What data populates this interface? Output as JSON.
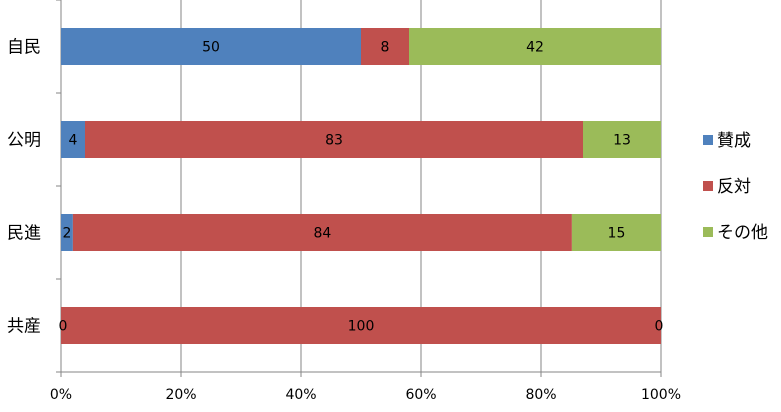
{
  "chart_data": {
    "type": "bar",
    "orientation": "horizontal",
    "stacked": "percent",
    "categories": [
      "自民",
      "公明",
      "民進",
      "共産"
    ],
    "series": [
      {
        "name": "賛成",
        "values": [
          50,
          4,
          2,
          0
        ],
        "color": "#4F81BD"
      },
      {
        "name": "反対",
        "values": [
          8,
          83,
          84,
          100
        ],
        "color": "#C0504D"
      },
      {
        "name": "その他",
        "values": [
          42,
          13,
          15,
          0
        ],
        "color": "#9BBB59"
      }
    ],
    "x_ticks": [
      "0%",
      "20%",
      "40%",
      "60%",
      "80%",
      "100%"
    ],
    "xlim": [
      0,
      100
    ],
    "grid": "vertical",
    "legend": "right",
    "title": "",
    "xlabel": "",
    "ylabel": ""
  }
}
